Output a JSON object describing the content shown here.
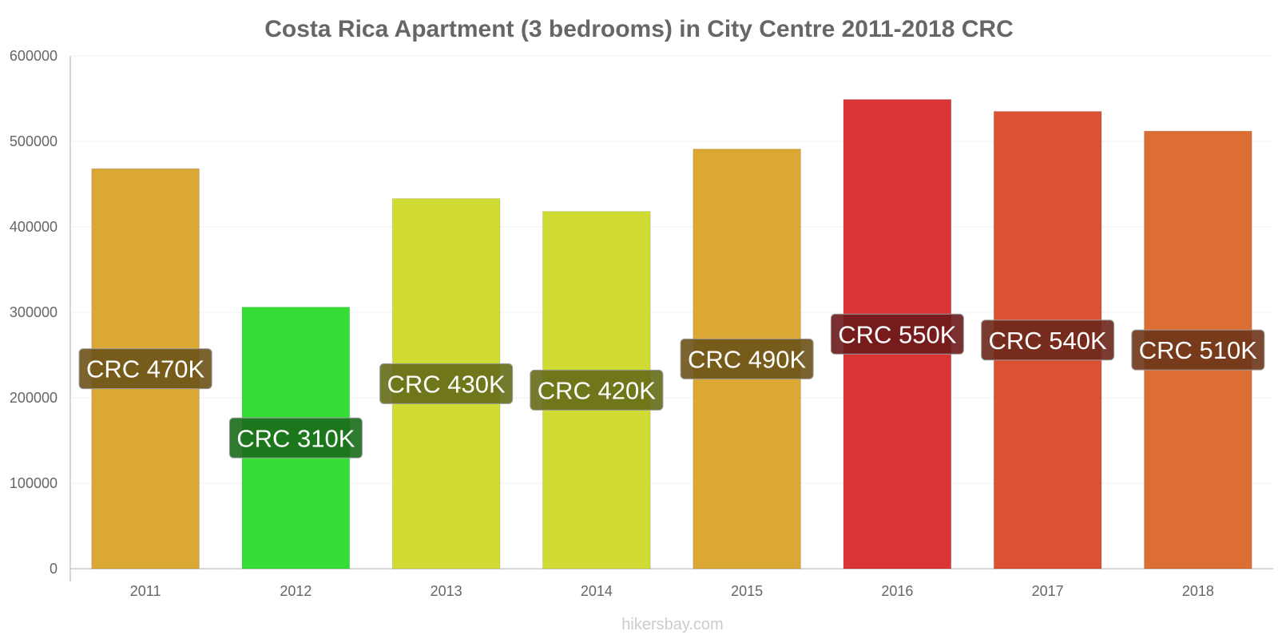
{
  "chart_data": {
    "type": "bar",
    "title": "Costa Rica Apartment (3 bedrooms) in City Centre 2011-2018 CRC",
    "categories": [
      "2011",
      "2012",
      "2013",
      "2014",
      "2015",
      "2016",
      "2017",
      "2018"
    ],
    "values": [
      468000,
      306000,
      433000,
      418000,
      491000,
      549000,
      535000,
      512000
    ],
    "data_labels": [
      "CRC 470K",
      "CRC 310K",
      "CRC 430K",
      "CRC 420K",
      "CRC 490K",
      "CRC 550K",
      "CRC 540K",
      "CRC 510K"
    ],
    "bar_colors": [
      "#dca834",
      "#36dd36",
      "#d0dc34",
      "#d0dc34",
      "#dca834",
      "#db3434",
      "#dc5034",
      "#dc6e34"
    ],
    "label_bg_colors": [
      "#6b5217",
      "#1a6a1a",
      "#656b17",
      "#656b17",
      "#6b5217",
      "#6b1919",
      "#6b2719",
      "#6b3519"
    ],
    "ylim": [
      0,
      600000
    ],
    "yticks": [
      "0",
      "100000",
      "200000",
      "300000",
      "400000",
      "500000",
      "600000"
    ],
    "xlabel": "",
    "ylabel": "",
    "grid": true,
    "legend": "none"
  },
  "credit": "hikersbay.com"
}
